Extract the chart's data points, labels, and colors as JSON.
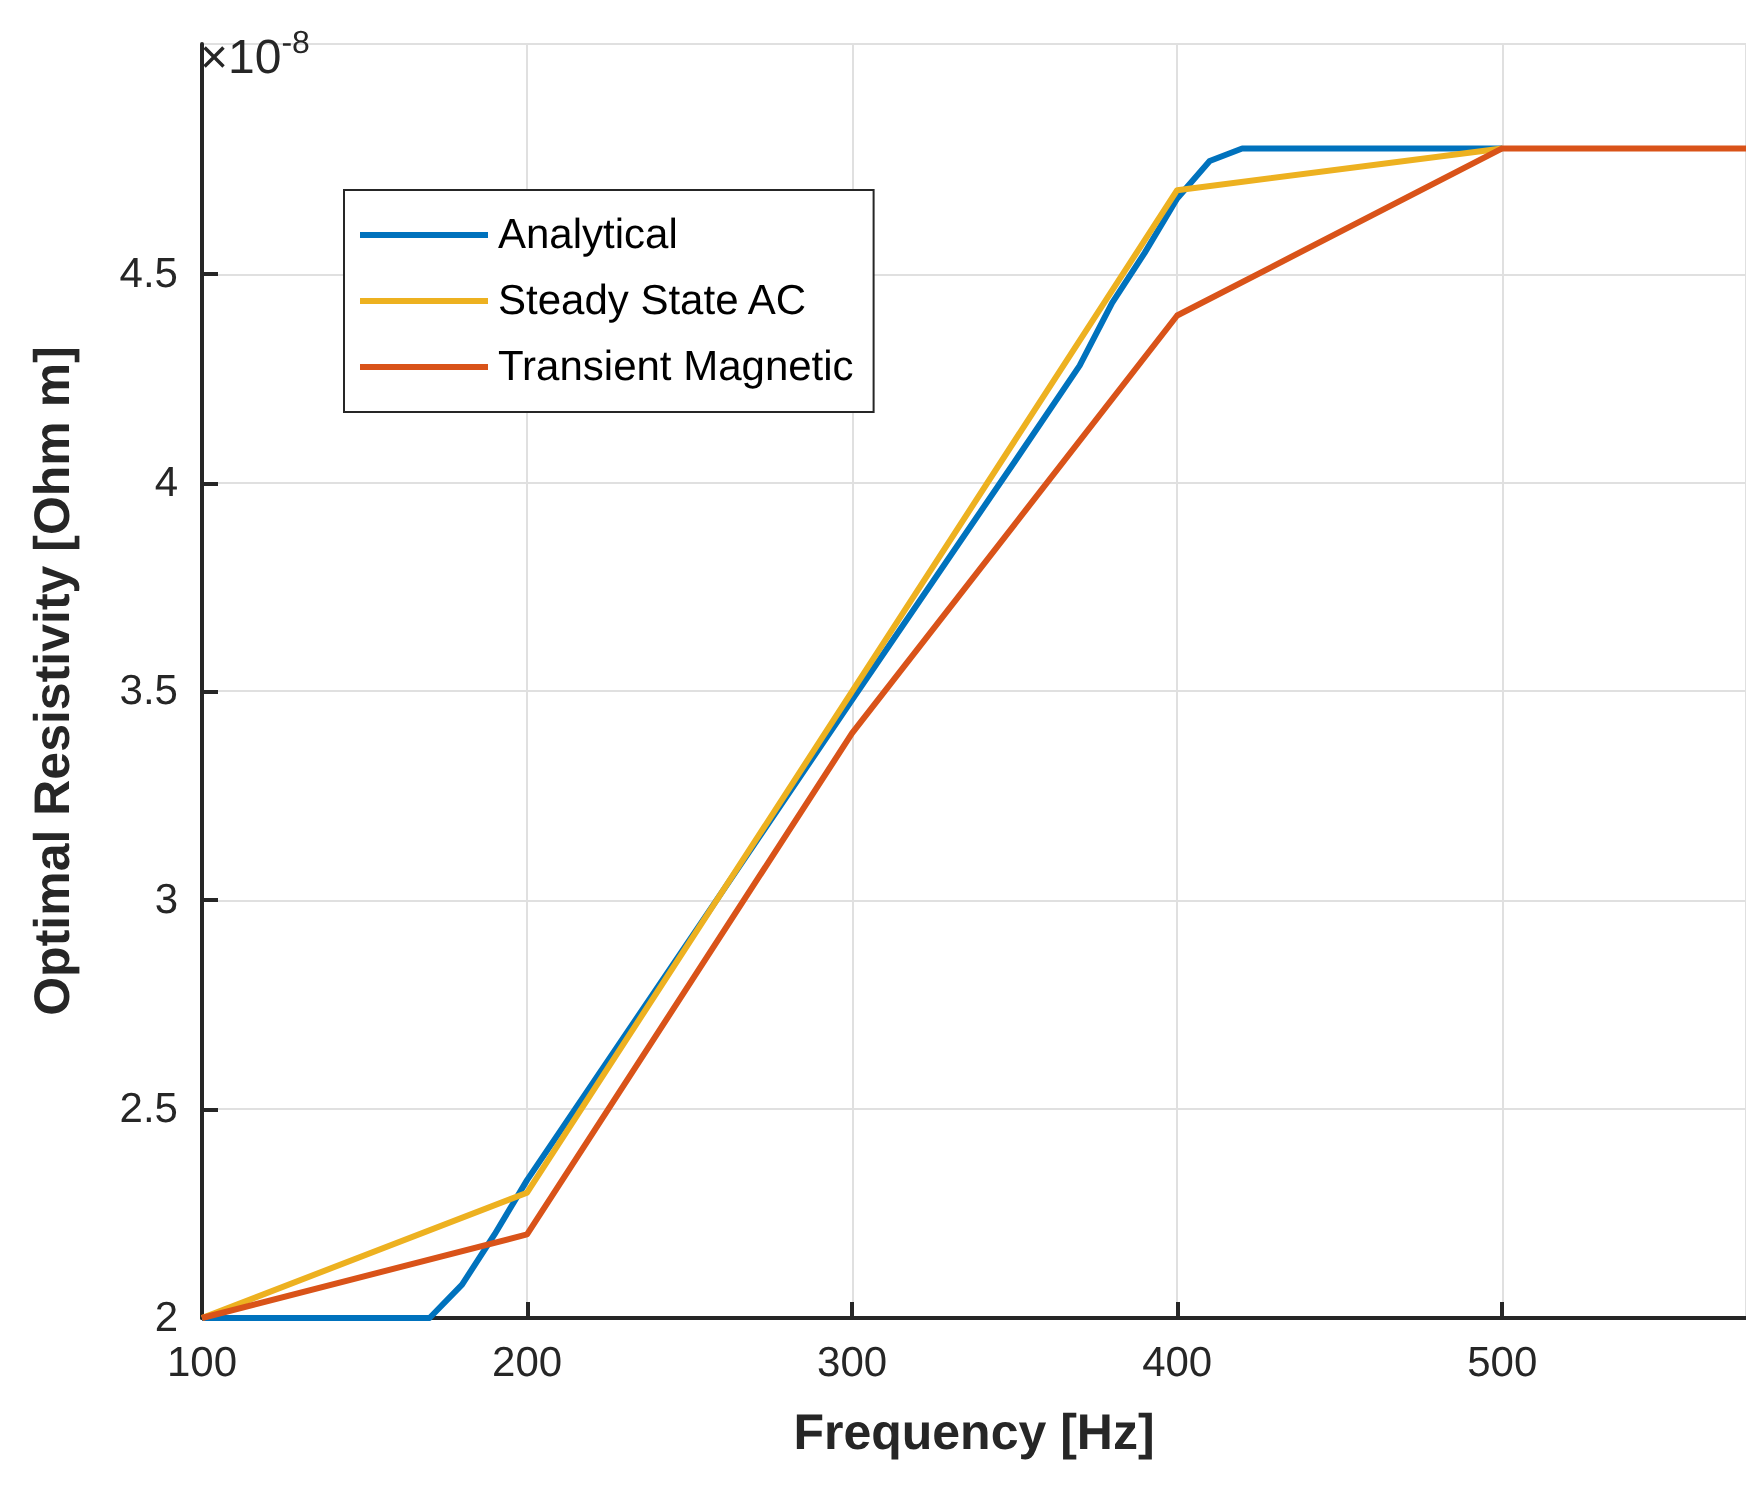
{
  "chart_data": {
    "type": "line",
    "xlabel": "Frequency [Hz]",
    "ylabel": "Optimal Resistivity [Ohm m]",
    "annotations": [
      "×10$^{-8}$"
    ],
    "xlim": [
      100,
      575
    ],
    "xticks": [
      100,
      200,
      300,
      400,
      500
    ],
    "ylim": [
      2,
      5.05
    ],
    "yticks": [
      2,
      2.5,
      3,
      3.5,
      4,
      4.5
    ],
    "grid": true,
    "legend": "top left",
    "line_style": "solid",
    "marker": "none",
    "series": [
      {
        "name": "Analytical",
        "color": "#0072bd",
        "x": [
          100,
          170,
          180,
          190,
          200,
          300,
          350,
          370,
          380,
          390,
          400,
          410,
          420,
          500
        ],
        "values": [
          2,
          2,
          2.08,
          2.2,
          2.33,
          3.48,
          4.05,
          4.28,
          4.43,
          4.55,
          4.68,
          4.77,
          4.8,
          4.8
        ]
      },
      {
        "name": "Steady State AC",
        "color": "#edb120",
        "x": [
          100,
          200,
          300,
          400,
          500
        ],
        "values": [
          2,
          2.3,
          3.5,
          4.7,
          4.8
        ]
      },
      {
        "name": "Transient Magnetic",
        "color": "#d95319",
        "x": [
          100,
          200,
          300,
          400,
          500,
          575
        ],
        "values": [
          2,
          2.2,
          3.4,
          4.4,
          4.8,
          4.8
        ]
      }
    ]
  }
}
